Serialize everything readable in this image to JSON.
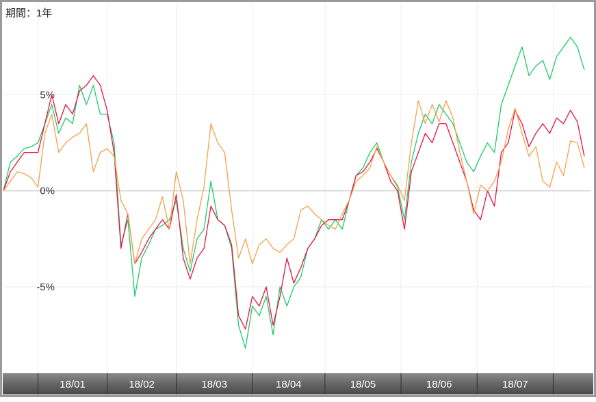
{
  "period_label": "期間：1年",
  "chart_data": {
    "type": "line",
    "title": "",
    "xlabel": "",
    "ylabel": "",
    "ylim": [
      -9.5,
      9.8
    ],
    "y_ticks": [
      {
        "value": 5,
        "label": "5%"
      },
      {
        "value": 0,
        "label": "0%"
      },
      {
        "value": -5,
        "label": "-5%"
      }
    ],
    "x_range": [
      0,
      170
    ],
    "month_boundaries": [
      10,
      30,
      50,
      72,
      93,
      115,
      137,
      159
    ],
    "month_labels": [
      {
        "label": "18/01",
        "at": 20
      },
      {
        "label": "18/02",
        "at": 40
      },
      {
        "label": "18/03",
        "at": 61
      },
      {
        "label": "18/04",
        "at": 82.5
      },
      {
        "label": "18/05",
        "at": 104
      },
      {
        "label": "18/06",
        "at": 126
      },
      {
        "label": "18/07",
        "at": 148
      }
    ],
    "grid": true,
    "series": [
      {
        "color": "#1fca6a",
        "points": [
          [
            0,
            0
          ],
          [
            2,
            1.5
          ],
          [
            4,
            1.8
          ],
          [
            6,
            2.2
          ],
          [
            8,
            2.3
          ],
          [
            10,
            2.5
          ],
          [
            12,
            3.5
          ],
          [
            14,
            4.5
          ],
          [
            16,
            3.0
          ],
          [
            18,
            3.8
          ],
          [
            20,
            3.5
          ],
          [
            22,
            5.5
          ],
          [
            24,
            4.5
          ],
          [
            26,
            5.5
          ],
          [
            28,
            4.0
          ],
          [
            30,
            4.0
          ],
          [
            32,
            2.5
          ],
          [
            34,
            -2.8
          ],
          [
            36,
            -1.5
          ],
          [
            38,
            -5.5
          ],
          [
            40,
            -3.5
          ],
          [
            42,
            -2.8
          ],
          [
            44,
            -2.0
          ],
          [
            46,
            -1.8
          ],
          [
            48,
            -1.5
          ],
          [
            50,
            -0.5
          ],
          [
            52,
            -3.0
          ],
          [
            54,
            -4.2
          ],
          [
            56,
            -2.5
          ],
          [
            58,
            -2.0
          ],
          [
            60,
            0.5
          ],
          [
            62,
            -1.5
          ],
          [
            64,
            -1.8
          ],
          [
            66,
            -3.0
          ],
          [
            68,
            -7.0
          ],
          [
            70,
            -8.2
          ],
          [
            72,
            -6.0
          ],
          [
            74,
            -6.5
          ],
          [
            76,
            -5.5
          ],
          [
            78,
            -7.5
          ],
          [
            80,
            -5.0
          ],
          [
            82,
            -6.0
          ],
          [
            84,
            -5.0
          ],
          [
            86,
            -4.5
          ],
          [
            88,
            -3.0
          ],
          [
            90,
            -2.5
          ],
          [
            92,
            -1.5
          ],
          [
            94,
            -2.0
          ],
          [
            96,
            -1.5
          ],
          [
            98,
            -2.0
          ],
          [
            100,
            -0.5
          ],
          [
            102,
            0.8
          ],
          [
            104,
            1.2
          ],
          [
            106,
            2.0
          ],
          [
            108,
            2.5
          ],
          [
            110,
            1.5
          ],
          [
            112,
            0.8
          ],
          [
            114,
            0.2
          ],
          [
            116,
            -1.5
          ],
          [
            118,
            1.5
          ],
          [
            120,
            3.0
          ],
          [
            122,
            4.0
          ],
          [
            124,
            3.5
          ],
          [
            126,
            4.5
          ],
          [
            128,
            4.0
          ],
          [
            130,
            3.5
          ],
          [
            132,
            2.5
          ],
          [
            134,
            1.5
          ],
          [
            136,
            1.0
          ],
          [
            138,
            1.8
          ],
          [
            140,
            2.5
          ],
          [
            142,
            2.0
          ],
          [
            144,
            4.5
          ],
          [
            146,
            5.5
          ],
          [
            148,
            6.5
          ],
          [
            150,
            7.5
          ],
          [
            152,
            6.0
          ],
          [
            154,
            6.5
          ],
          [
            156,
            6.8
          ],
          [
            158,
            5.8
          ],
          [
            160,
            7.0
          ],
          [
            162,
            7.5
          ],
          [
            164,
            8.0
          ],
          [
            166,
            7.5
          ],
          [
            168,
            6.3
          ]
        ]
      },
      {
        "color": "#e8123f",
        "points": [
          [
            0,
            0
          ],
          [
            2,
            1.0
          ],
          [
            4,
            1.5
          ],
          [
            6,
            2.0
          ],
          [
            8,
            2.0
          ],
          [
            10,
            2.0
          ],
          [
            12,
            3.5
          ],
          [
            14,
            5.0
          ],
          [
            16,
            3.5
          ],
          [
            18,
            4.5
          ],
          [
            20,
            4.0
          ],
          [
            22,
            5.2
          ],
          [
            24,
            5.5
          ],
          [
            26,
            6.0
          ],
          [
            28,
            5.5
          ],
          [
            30,
            4.2
          ],
          [
            32,
            2.0
          ],
          [
            34,
            -3.0
          ],
          [
            36,
            -1.2
          ],
          [
            38,
            -3.8
          ],
          [
            40,
            -3.2
          ],
          [
            42,
            -2.5
          ],
          [
            44,
            -2.0
          ],
          [
            46,
            -1.5
          ],
          [
            48,
            -2.0
          ],
          [
            50,
            -0.2
          ],
          [
            52,
            -3.5
          ],
          [
            54,
            -4.6
          ],
          [
            56,
            -3.5
          ],
          [
            58,
            -3.0
          ],
          [
            60,
            -0.8
          ],
          [
            62,
            -1.5
          ],
          [
            64,
            -1.8
          ],
          [
            66,
            -2.8
          ],
          [
            68,
            -6.5
          ],
          [
            70,
            -7.2
          ],
          [
            72,
            -5.5
          ],
          [
            74,
            -6.0
          ],
          [
            76,
            -5.0
          ],
          [
            78,
            -7.0
          ],
          [
            80,
            -5.5
          ],
          [
            82,
            -3.5
          ],
          [
            84,
            -4.8
          ],
          [
            86,
            -4.0
          ],
          [
            88,
            -3.0
          ],
          [
            90,
            -2.5
          ],
          [
            92,
            -1.8
          ],
          [
            94,
            -1.5
          ],
          [
            96,
            -1.5
          ],
          [
            98,
            -1.5
          ],
          [
            100,
            -0.5
          ],
          [
            102,
            0.8
          ],
          [
            104,
            1.0
          ],
          [
            106,
            1.5
          ],
          [
            108,
            2.2
          ],
          [
            110,
            1.5
          ],
          [
            112,
            0.5
          ],
          [
            114,
            0.0
          ],
          [
            116,
            -2.0
          ],
          [
            118,
            1.0
          ],
          [
            120,
            2.0
          ],
          [
            122,
            3.0
          ],
          [
            124,
            2.5
          ],
          [
            126,
            3.5
          ],
          [
            128,
            3.5
          ],
          [
            130,
            2.5
          ],
          [
            132,
            1.5
          ],
          [
            134,
            0.5
          ],
          [
            136,
            -1.0
          ],
          [
            138,
            -1.5
          ],
          [
            140,
            0.0
          ],
          [
            142,
            -0.8
          ],
          [
            144,
            2.0
          ],
          [
            146,
            2.5
          ],
          [
            148,
            4.2
          ],
          [
            150,
            3.5
          ],
          [
            152,
            2.3
          ],
          [
            154,
            3.0
          ],
          [
            156,
            3.5
          ],
          [
            158,
            3.0
          ],
          [
            160,
            3.8
          ],
          [
            162,
            3.5
          ],
          [
            164,
            4.2
          ],
          [
            166,
            3.6
          ],
          [
            168,
            1.8
          ]
        ]
      },
      {
        "color": "#f5a04a",
        "points": [
          [
            0,
            0
          ],
          [
            2,
            0.5
          ],
          [
            4,
            1.0
          ],
          [
            6,
            0.9
          ],
          [
            8,
            0.7
          ],
          [
            10,
            0.2
          ],
          [
            12,
            3.0
          ],
          [
            14,
            4.0
          ],
          [
            16,
            2.0
          ],
          [
            18,
            2.5
          ],
          [
            20,
            2.8
          ],
          [
            22,
            3.0
          ],
          [
            24,
            3.5
          ],
          [
            26,
            1.0
          ],
          [
            28,
            2.0
          ],
          [
            30,
            2.2
          ],
          [
            32,
            1.8
          ],
          [
            34,
            -0.5
          ],
          [
            36,
            -1.2
          ],
          [
            38,
            -3.8
          ],
          [
            40,
            -2.5
          ],
          [
            42,
            -2.0
          ],
          [
            44,
            -1.5
          ],
          [
            46,
            -0.3
          ],
          [
            48,
            -2.0
          ],
          [
            50,
            1.0
          ],
          [
            52,
            -0.5
          ],
          [
            54,
            -3.8
          ],
          [
            56,
            -1.5
          ],
          [
            58,
            0.2
          ],
          [
            60,
            3.5
          ],
          [
            62,
            2.5
          ],
          [
            64,
            2.0
          ],
          [
            66,
            -1.0
          ],
          [
            68,
            -3.5
          ],
          [
            70,
            -2.5
          ],
          [
            72,
            -3.8
          ],
          [
            74,
            -2.8
          ],
          [
            76,
            -2.5
          ],
          [
            78,
            -3.0
          ],
          [
            80,
            -3.2
          ],
          [
            82,
            -2.8
          ],
          [
            84,
            -2.5
          ],
          [
            86,
            -1.0
          ],
          [
            88,
            -0.8
          ],
          [
            90,
            -1.2
          ],
          [
            92,
            -1.5
          ],
          [
            94,
            -1.8
          ],
          [
            96,
            -2.0
          ],
          [
            98,
            -1.2
          ],
          [
            100,
            -0.5
          ],
          [
            102,
            0.5
          ],
          [
            104,
            0.8
          ],
          [
            106,
            1.2
          ],
          [
            108,
            2.3
          ],
          [
            110,
            1.5
          ],
          [
            112,
            0.8
          ],
          [
            114,
            0.3
          ],
          [
            116,
            -0.5
          ],
          [
            118,
            2.5
          ],
          [
            120,
            4.7
          ],
          [
            122,
            3.5
          ],
          [
            124,
            4.5
          ],
          [
            126,
            3.6
          ],
          [
            128,
            4.7
          ],
          [
            130,
            3.8
          ],
          [
            132,
            2.0
          ],
          [
            134,
            0.5
          ],
          [
            136,
            -1.2
          ],
          [
            138,
            0.3
          ],
          [
            140,
            0.0
          ],
          [
            142,
            0.5
          ],
          [
            144,
            1.5
          ],
          [
            146,
            3.2
          ],
          [
            148,
            4.3
          ],
          [
            150,
            3.0
          ],
          [
            152,
            1.8
          ],
          [
            154,
            2.3
          ],
          [
            156,
            0.5
          ],
          [
            158,
            0.2
          ],
          [
            160,
            1.5
          ],
          [
            162,
            0.8
          ],
          [
            164,
            2.6
          ],
          [
            166,
            2.5
          ],
          [
            168,
            1.2
          ]
        ]
      }
    ]
  }
}
